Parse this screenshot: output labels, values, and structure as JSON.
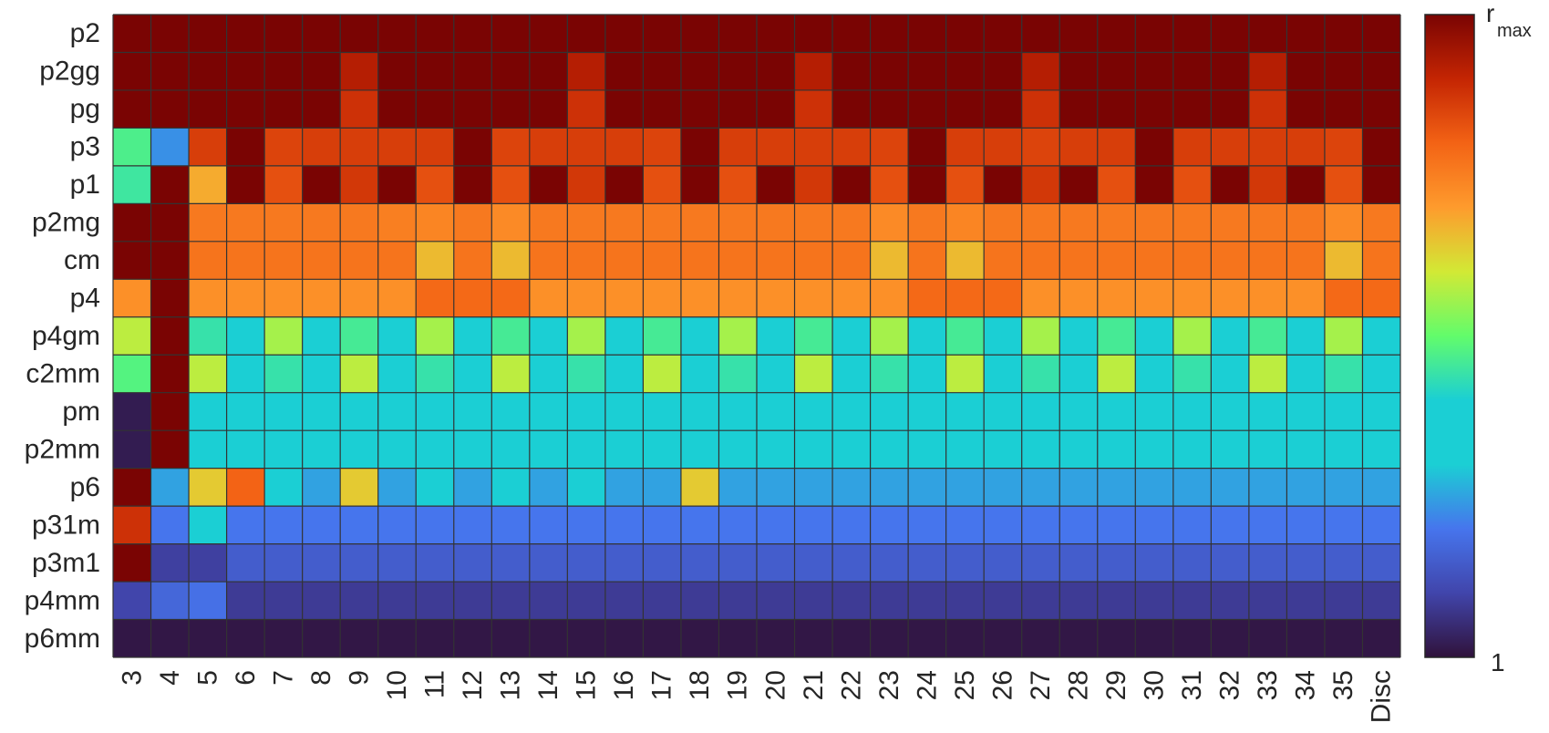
{
  "chart_data": {
    "type": "heatmap",
    "title": "",
    "x_categories": [
      "3",
      "4",
      "5",
      "6",
      "7",
      "8",
      "9",
      "10",
      "11",
      "12",
      "13",
      "14",
      "15",
      "16",
      "17",
      "18",
      "19",
      "20",
      "21",
      "22",
      "23",
      "24",
      "25",
      "26",
      "27",
      "28",
      "29",
      "30",
      "31",
      "32",
      "33",
      "34",
      "35",
      "Disc"
    ],
    "y_categories": [
      "p2",
      "p2gg",
      "pg",
      "p3",
      "p1",
      "p2mg",
      "cm",
      "p4",
      "p4gm",
      "c2mm",
      "pm",
      "p2mm",
      "p6",
      "p31m",
      "p3m1",
      "p4mm",
      "p6mm"
    ],
    "colorbar": {
      "colormap": "turbo",
      "range": [
        0,
        1
      ],
      "top_label_main": "r",
      "top_label_sub": "max",
      "bottom_label": "1"
    },
    "values": [
      [
        1,
        1,
        1,
        1,
        1,
        1,
        1,
        1,
        1,
        1,
        1,
        1,
        1,
        1,
        1,
        1,
        1,
        1,
        1,
        1,
        1,
        1,
        1,
        1,
        1,
        1,
        1,
        1,
        1,
        1,
        1,
        1,
        1,
        1
      ],
      [
        1,
        1,
        1,
        1,
        1,
        1,
        0.92,
        1,
        1,
        1,
        1,
        1,
        0.92,
        1,
        1,
        1,
        1,
        1,
        0.92,
        1,
        1,
        1,
        1,
        1,
        0.92,
        1,
        1,
        1,
        1,
        1,
        0.92,
        1,
        1,
        1
      ],
      [
        1,
        1,
        1,
        1,
        1,
        1,
        0.88,
        1,
        1,
        1,
        1,
        1,
        0.88,
        1,
        1,
        1,
        1,
        1,
        0.88,
        1,
        1,
        1,
        1,
        1,
        0.88,
        1,
        1,
        1,
        1,
        1,
        0.88,
        1,
        1,
        1
      ],
      [
        0.47,
        0.23,
        0.86,
        1,
        0.85,
        0.86,
        0.86,
        0.86,
        0.86,
        1,
        0.85,
        0.86,
        0.86,
        0.86,
        0.85,
        1,
        0.86,
        0.86,
        0.86,
        0.86,
        0.85,
        1,
        0.86,
        0.86,
        0.85,
        0.86,
        0.86,
        1,
        0.86,
        0.86,
        0.86,
        0.86,
        0.85,
        1
      ],
      [
        0.45,
        1,
        0.68,
        1,
        0.83,
        1,
        0.87,
        1,
        0.83,
        1,
        0.83,
        1,
        0.87,
        1,
        0.83,
        1,
        0.83,
        1,
        0.87,
        1,
        0.83,
        1,
        0.83,
        1,
        0.87,
        1,
        0.83,
        1,
        0.83,
        1,
        0.87,
        1,
        0.83,
        1
      ],
      [
        1,
        1,
        0.76,
        0.76,
        0.76,
        0.76,
        0.76,
        0.75,
        0.74,
        0.76,
        0.73,
        0.76,
        0.76,
        0.76,
        0.76,
        0.76,
        0.76,
        0.76,
        0.76,
        0.76,
        0.73,
        0.76,
        0.74,
        0.76,
        0.76,
        0.76,
        0.76,
        0.76,
        0.76,
        0.76,
        0.76,
        0.76,
        0.73,
        0.76
      ],
      [
        1,
        1,
        0.77,
        0.77,
        0.77,
        0.77,
        0.77,
        0.77,
        0.66,
        0.77,
        0.66,
        0.77,
        0.77,
        0.77,
        0.77,
        0.77,
        0.77,
        0.77,
        0.77,
        0.77,
        0.66,
        0.77,
        0.66,
        0.77,
        0.77,
        0.77,
        0.77,
        0.77,
        0.77,
        0.77,
        0.77,
        0.77,
        0.66,
        0.77
      ],
      [
        0.72,
        1,
        0.72,
        0.72,
        0.72,
        0.72,
        0.72,
        0.72,
        0.79,
        0.79,
        0.79,
        0.72,
        0.72,
        0.72,
        0.72,
        0.72,
        0.72,
        0.72,
        0.72,
        0.72,
        0.72,
        0.79,
        0.79,
        0.79,
        0.72,
        0.72,
        0.72,
        0.72,
        0.72,
        0.72,
        0.72,
        0.72,
        0.79,
        0.79
      ],
      [
        0.58,
        1,
        0.44,
        0.3,
        0.56,
        0.36,
        0.46,
        0.3,
        0.56,
        0.36,
        0.46,
        0.3,
        0.56,
        0.36,
        0.46,
        0.3,
        0.56,
        0.36,
        0.46,
        0.3,
        0.56,
        0.36,
        0.46,
        0.3,
        0.56,
        0.36,
        0.46,
        0.3,
        0.56,
        0.36,
        0.46,
        0.3,
        0.56,
        0.36
      ],
      [
        0.48,
        1,
        0.58,
        0.36,
        0.44,
        0.36,
        0.58,
        0.36,
        0.44,
        0.36,
        0.58,
        0.36,
        0.44,
        0.36,
        0.58,
        0.36,
        0.44,
        0.36,
        0.58,
        0.36,
        0.44,
        0.36,
        0.58,
        0.36,
        0.44,
        0.36,
        0.58,
        0.36,
        0.44,
        0.36,
        0.58,
        0.36,
        0.44,
        0.36
      ],
      [
        0.02,
        1,
        0.35,
        0.35,
        0.35,
        0.35,
        0.35,
        0.35,
        0.35,
        0.35,
        0.35,
        0.35,
        0.35,
        0.35,
        0.35,
        0.35,
        0.35,
        0.35,
        0.35,
        0.35,
        0.35,
        0.35,
        0.35,
        0.35,
        0.35,
        0.35,
        0.35,
        0.35,
        0.35,
        0.35,
        0.35,
        0.35,
        0.35,
        0.35
      ],
      [
        0.02,
        1,
        0.34,
        0.34,
        0.34,
        0.34,
        0.34,
        0.34,
        0.34,
        0.34,
        0.34,
        0.34,
        0.34,
        0.34,
        0.34,
        0.34,
        0.34,
        0.34,
        0.34,
        0.34,
        0.34,
        0.34,
        0.34,
        0.34,
        0.34,
        0.34,
        0.34,
        0.34,
        0.34,
        0.34,
        0.34,
        0.34,
        0.34,
        0.34
      ],
      [
        1,
        0.25,
        0.64,
        0.8,
        0.4,
        0.25,
        0.64,
        0.25,
        0.4,
        0.25,
        0.4,
        0.25,
        0.4,
        0.25,
        0.25,
        0.64,
        0.25,
        0.25,
        0.25,
        0.25,
        0.25,
        0.25,
        0.25,
        0.25,
        0.25,
        0.25,
        0.25,
        0.25,
        0.25,
        0.25,
        0.25,
        0.25,
        0.25,
        0.25
      ],
      [
        0.88,
        0.2,
        0.4,
        0.2,
        0.2,
        0.2,
        0.2,
        0.2,
        0.2,
        0.2,
        0.2,
        0.2,
        0.2,
        0.2,
        0.2,
        0.2,
        0.2,
        0.2,
        0.2,
        0.2,
        0.2,
        0.2,
        0.2,
        0.2,
        0.2,
        0.2,
        0.2,
        0.2,
        0.2,
        0.2,
        0.2,
        0.2,
        0.2,
        0.2
      ],
      [
        1,
        0.09,
        0.09,
        0.15,
        0.15,
        0.15,
        0.15,
        0.15,
        0.15,
        0.15,
        0.15,
        0.15,
        0.15,
        0.15,
        0.15,
        0.15,
        0.15,
        0.15,
        0.15,
        0.15,
        0.15,
        0.15,
        0.15,
        0.15,
        0.15,
        0.15,
        0.15,
        0.15,
        0.15,
        0.15,
        0.15,
        0.15,
        0.15,
        0.15
      ],
      [
        0.1,
        0.17,
        0.19,
        0.08,
        0.08,
        0.08,
        0.08,
        0.08,
        0.08,
        0.08,
        0.08,
        0.08,
        0.08,
        0.08,
        0.08,
        0.08,
        0.08,
        0.08,
        0.08,
        0.08,
        0.08,
        0.08,
        0.08,
        0.08,
        0.08,
        0.08,
        0.08,
        0.08,
        0.08,
        0.08,
        0.08,
        0.08,
        0.08,
        0.08
      ],
      [
        0.01,
        0.01,
        0.01,
        0.01,
        0.01,
        0.01,
        0.01,
        0.01,
        0.01,
        0.01,
        0.01,
        0.01,
        0.01,
        0.01,
        0.01,
        0.01,
        0.01,
        0.01,
        0.01,
        0.01,
        0.01,
        0.01,
        0.01,
        0.01,
        0.01,
        0.01,
        0.01,
        0.01,
        0.01,
        0.01,
        0.01,
        0.01,
        0.01,
        0.01
      ]
    ]
  }
}
